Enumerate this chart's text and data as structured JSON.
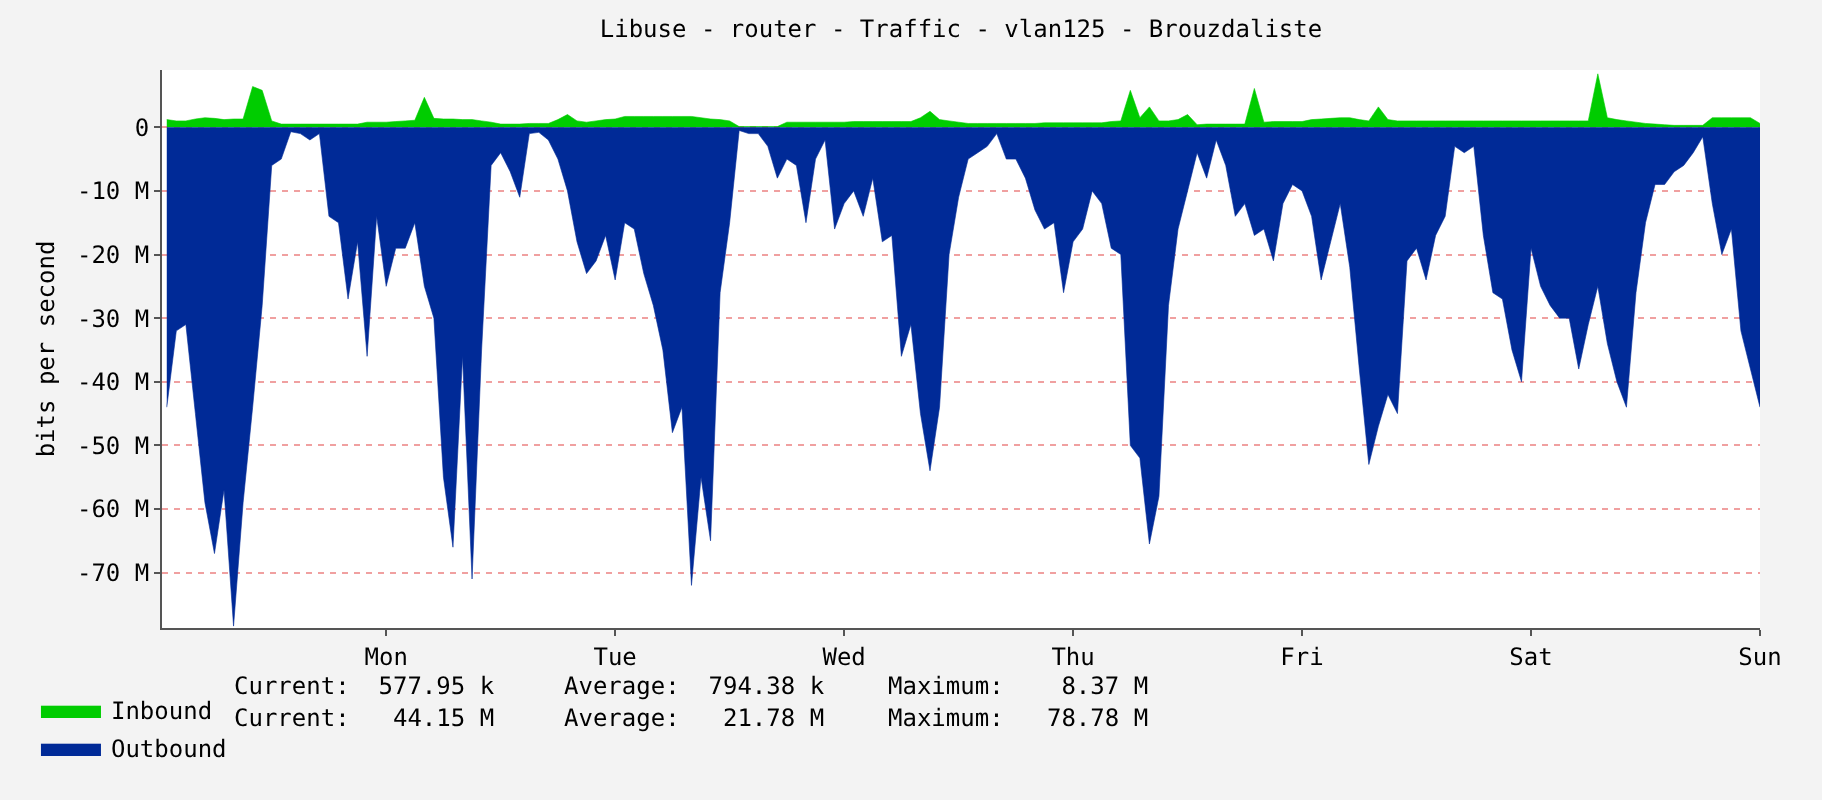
{
  "chart_data": {
    "type": "area",
    "title": "Libuse - router - Traffic - vlan125 - Brouzdaliste",
    "ylabel": "bits per second",
    "categories": [
      null,
      null,
      null,
      null,
      null,
      null,
      null,
      null,
      null,
      null,
      null,
      null,
      null,
      null,
      null,
      null,
      null,
      null,
      null,
      null,
      null,
      null,
      null,
      "Mon",
      null,
      null,
      null,
      null,
      null,
      null,
      null,
      null,
      null,
      null,
      null,
      null,
      null,
      null,
      null,
      null,
      null,
      null,
      null,
      null,
      null,
      null,
      null,
      "Tue",
      null,
      null,
      null,
      null,
      null,
      null,
      null,
      null,
      null,
      null,
      null,
      null,
      null,
      null,
      null,
      null,
      null,
      null,
      null,
      null,
      null,
      null,
      null,
      "Wed",
      null,
      null,
      null,
      null,
      null,
      null,
      null,
      null,
      null,
      null,
      null,
      null,
      null,
      null,
      null,
      null,
      null,
      null,
      null,
      null,
      null,
      null,
      null,
      "Thu",
      null,
      null,
      null,
      null,
      null,
      null,
      null,
      null,
      null,
      null,
      null,
      null,
      null,
      null,
      null,
      null,
      null,
      null,
      null,
      null,
      null,
      null,
      null,
      "Fri",
      null,
      null,
      null,
      null,
      null,
      null,
      null,
      null,
      null,
      null,
      null,
      null,
      null,
      null,
      null,
      null,
      null,
      null,
      null,
      null,
      null,
      null,
      null,
      "Sat",
      null,
      null,
      null,
      null,
      null,
      null,
      null,
      null,
      null,
      null,
      null,
      null,
      null,
      null,
      null,
      null,
      null,
      null,
      null,
      null,
      null,
      null,
      null,
      "Sun"
    ],
    "ylim": [
      -78.7,
      9
    ],
    "yticks": [
      0,
      {
        "value": -10,
        "label": "-10 M"
      },
      {
        "value": -20,
        "label": "-20 M"
      },
      {
        "value": -30,
        "label": "-30 M"
      },
      {
        "value": -40,
        "label": "-40 M"
      },
      {
        "value": -50,
        "label": "-50 M"
      },
      {
        "value": -60,
        "label": "-60 M"
      },
      {
        "value": -70,
        "label": "-70 M"
      }
    ],
    "grid": "y",
    "legend": "bottom left",
    "series": [
      {
        "name": "Inbound",
        "color": "#00cc00",
        "values": [
          1.2,
          1.0,
          1.0,
          1.3,
          1.5,
          1.4,
          1.2,
          1.3,
          1.3,
          6.4,
          5.8,
          1.0,
          0.5,
          0.5,
          0.5,
          0.5,
          0.5,
          0.5,
          0.5,
          0.5,
          0.5,
          0.8,
          0.8,
          0.8,
          0.9,
          1.0,
          1.1,
          4.7,
          1.4,
          1.3,
          1.3,
          1.2,
          1.2,
          1.0,
          0.8,
          0.5,
          0.5,
          0.5,
          0.6,
          0.6,
          0.6,
          1.2,
          2.0,
          1.0,
          0.8,
          1.0,
          1.2,
          1.3,
          1.7,
          1.7,
          1.7,
          1.7,
          1.7,
          1.7,
          1.7,
          1.7,
          1.5,
          1.3,
          1.2,
          1.0,
          0.1,
          0.1,
          0.1,
          0.1,
          0.1,
          0.8,
          0.8,
          0.8,
          0.8,
          0.8,
          0.8,
          0.8,
          0.9,
          0.9,
          0.9,
          0.9,
          0.9,
          0.9,
          0.9,
          1.5,
          2.5,
          1.2,
          1.0,
          0.8,
          0.6,
          0.6,
          0.6,
          0.6,
          0.6,
          0.6,
          0.6,
          0.6,
          0.7,
          0.7,
          0.7,
          0.7,
          0.7,
          0.7,
          0.7,
          0.9,
          1.0,
          5.8,
          1.5,
          3.2,
          1.0,
          1.0,
          1.2,
          2.0,
          0.4,
          0.5,
          0.5,
          0.5,
          0.5,
          0.5,
          6.1,
          0.8,
          0.9,
          0.9,
          0.9,
          0.9,
          1.2,
          1.3,
          1.4,
          1.5,
          1.5,
          1.2,
          1.0,
          3.2,
          1.2,
          1.0,
          1.0,
          1.0,
          1.0,
          1.0,
          1.0,
          1.0,
          1.0,
          1.0,
          1.0,
          1.0,
          1.0,
          1.0,
          1.0,
          1.0,
          1.0,
          1.0,
          1.0,
          1.0,
          1.0,
          1.0,
          8.4,
          1.5,
          1.2,
          1.0,
          0.8,
          0.6,
          0.5,
          0.4,
          0.3,
          0.3,
          0.3,
          0.3,
          1.5,
          1.5,
          1.5,
          1.5,
          1.5,
          0.6
        ]
      },
      {
        "name": "Outbound",
        "color": "#002a97",
        "values": [
          -44,
          -32,
          -31,
          -45,
          -59,
          -67,
          -57,
          -78.4,
          -59,
          -44,
          -28,
          -6,
          -5,
          -0.7,
          -1,
          -2,
          -1,
          -14,
          -15,
          -27,
          -18,
          -36,
          -14,
          -25,
          -19,
          -19,
          -15,
          -25,
          -30,
          -55,
          -66,
          -36,
          -71,
          -35,
          -6,
          -4,
          -7,
          -11,
          -1,
          -0.8,
          -2,
          -5,
          -10,
          -18,
          -23,
          -21,
          -17,
          -24,
          -15,
          -16,
          -23,
          -28,
          -35,
          -48,
          -44,
          -72,
          -55,
          -65,
          -26,
          -15,
          -0.5,
          -1,
          -1,
          -3,
          -8,
          -5,
          -6,
          -15,
          -5,
          -2,
          -16,
          -12,
          -10,
          -14,
          -8,
          -18,
          -17,
          -36,
          -31,
          -45,
          -54,
          -44,
          -20,
          -11,
          -5,
          -4,
          -3,
          -1,
          -5,
          -5,
          -8,
          -13,
          -16,
          -15,
          -26,
          -18,
          -16,
          -10,
          -12,
          -19,
          -20,
          -50,
          -52,
          -65.5,
          -58,
          -28,
          -16,
          -10,
          -4,
          -8,
          -2,
          -6,
          -14,
          -12,
          -17,
          -16,
          -21,
          -12,
          -9,
          -10,
          -14,
          -24,
          -18,
          -12,
          -22,
          -38,
          -53,
          -47,
          -42,
          -45,
          -21,
          -19,
          -24,
          -17,
          -14,
          -3,
          -4,
          -3,
          -17,
          -26,
          -27,
          -35,
          -40,
          -19,
          -25,
          -28,
          -30,
          -30,
          -38,
          -31,
          -25,
          -34,
          -40,
          -44,
          -26,
          -15,
          -9,
          -9,
          -7,
          -6,
          -4,
          -1.5,
          -12,
          -20,
          -16,
          -32,
          -38,
          -44
        ]
      }
    ],
    "annotations": [
      "Current:  577.95 k",
      "Average:  794.38 k",
      "Maximum:    8.37 M",
      "Current:   44.15 M",
      "Average:   21.78 M",
      "Maximum:   78.78 M"
    ]
  }
}
